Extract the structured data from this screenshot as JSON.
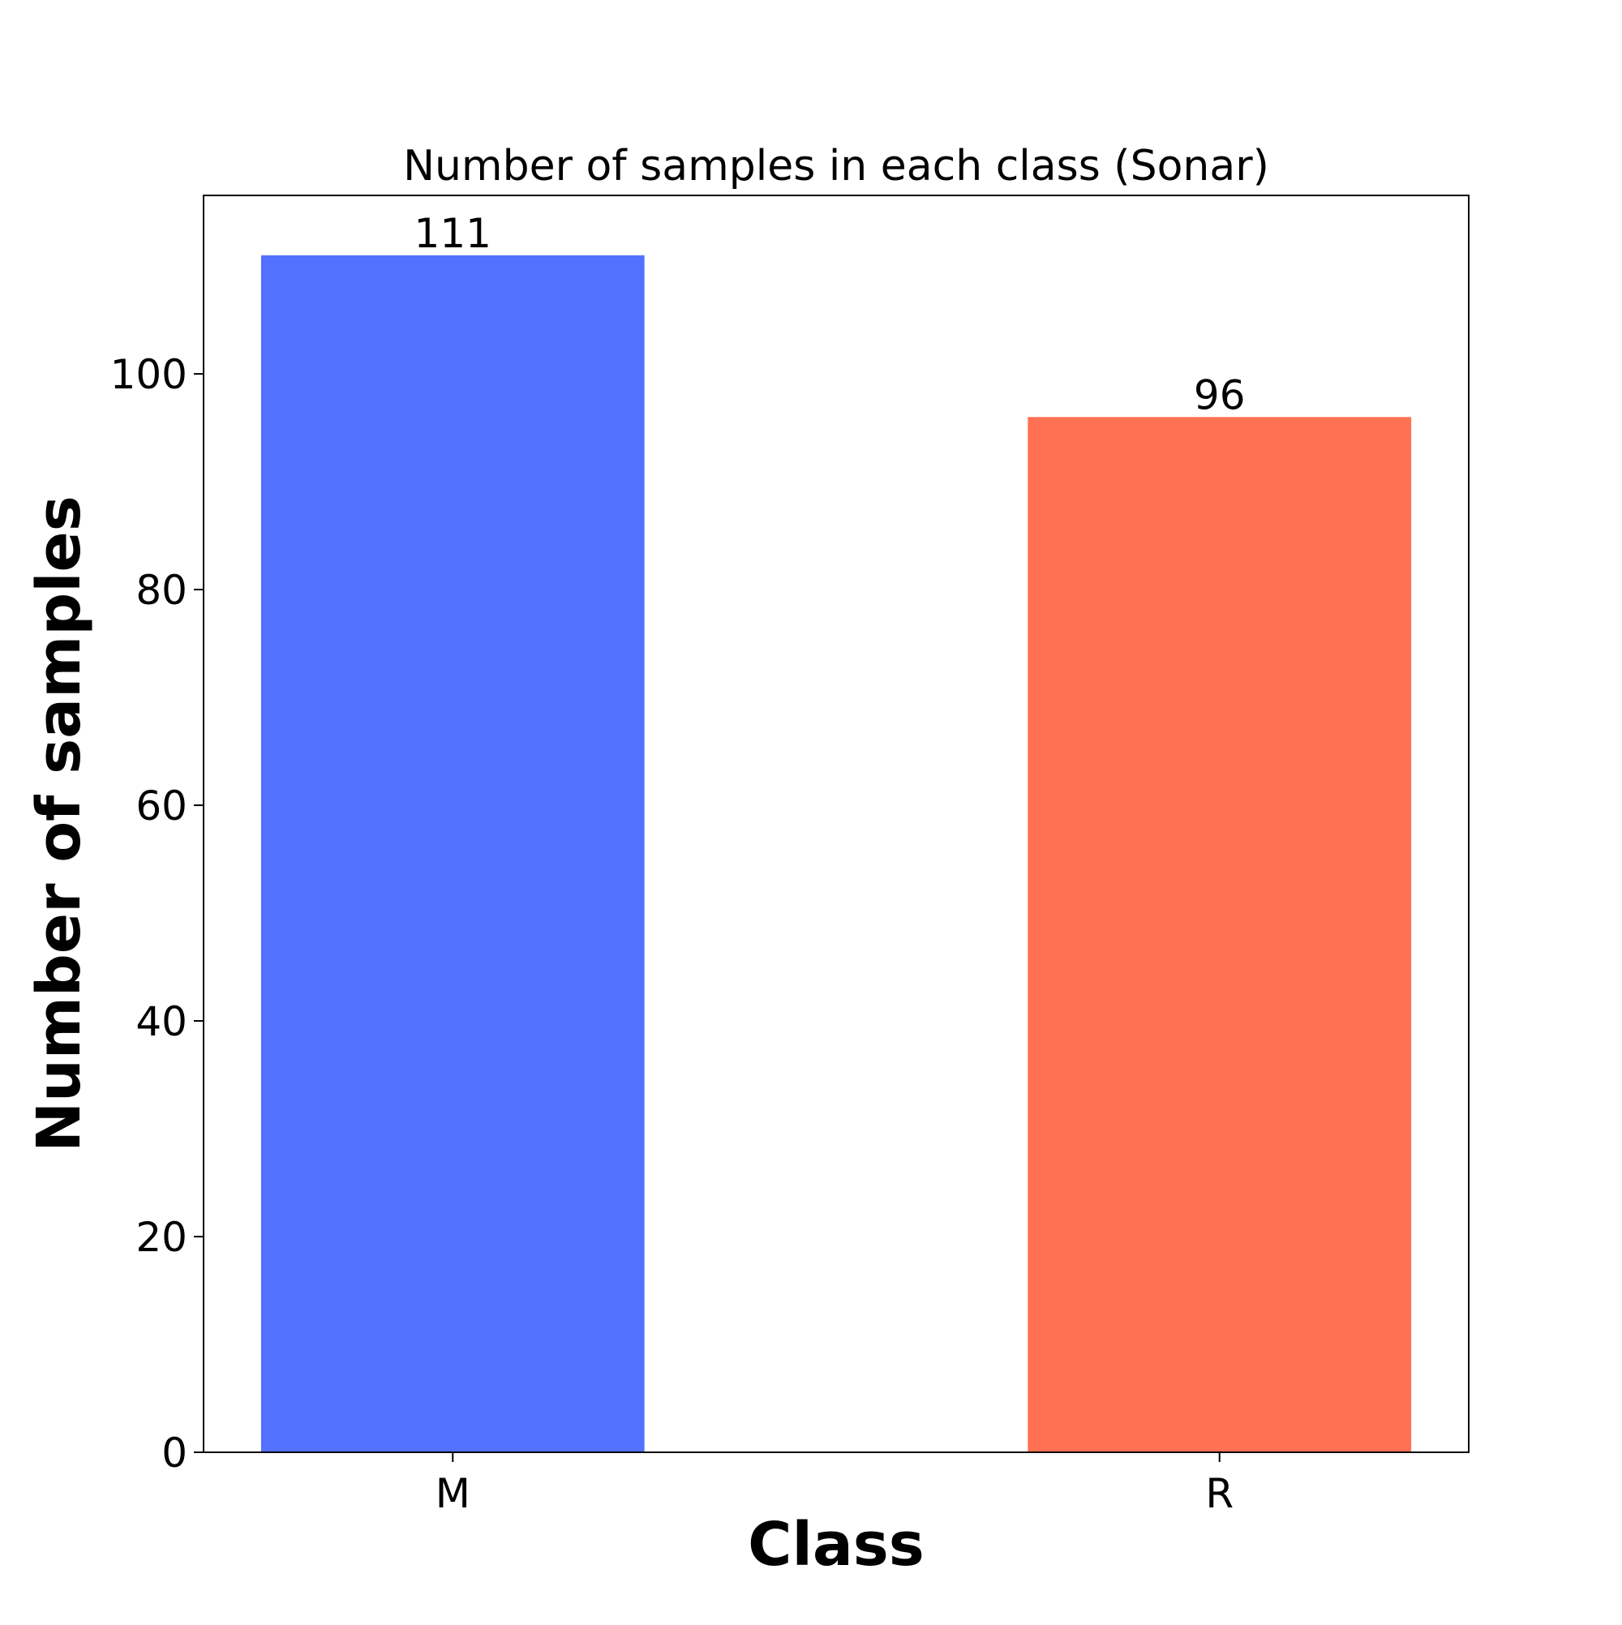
{
  "chart_data": {
    "type": "bar",
    "title": "Number of samples in each class (Sonar)",
    "xlabel": "Class",
    "ylabel": "Number of samples",
    "categories": [
      "M",
      "R"
    ],
    "values": [
      111,
      96
    ],
    "bar_labels": [
      "111",
      "96"
    ],
    "bar_colors": [
      "#5271FF",
      "#FF7152"
    ],
    "ylim": [
      0,
      116.55
    ],
    "yticks": [
      0,
      20,
      40,
      60,
      80,
      100
    ],
    "grid": false,
    "legend": false
  }
}
